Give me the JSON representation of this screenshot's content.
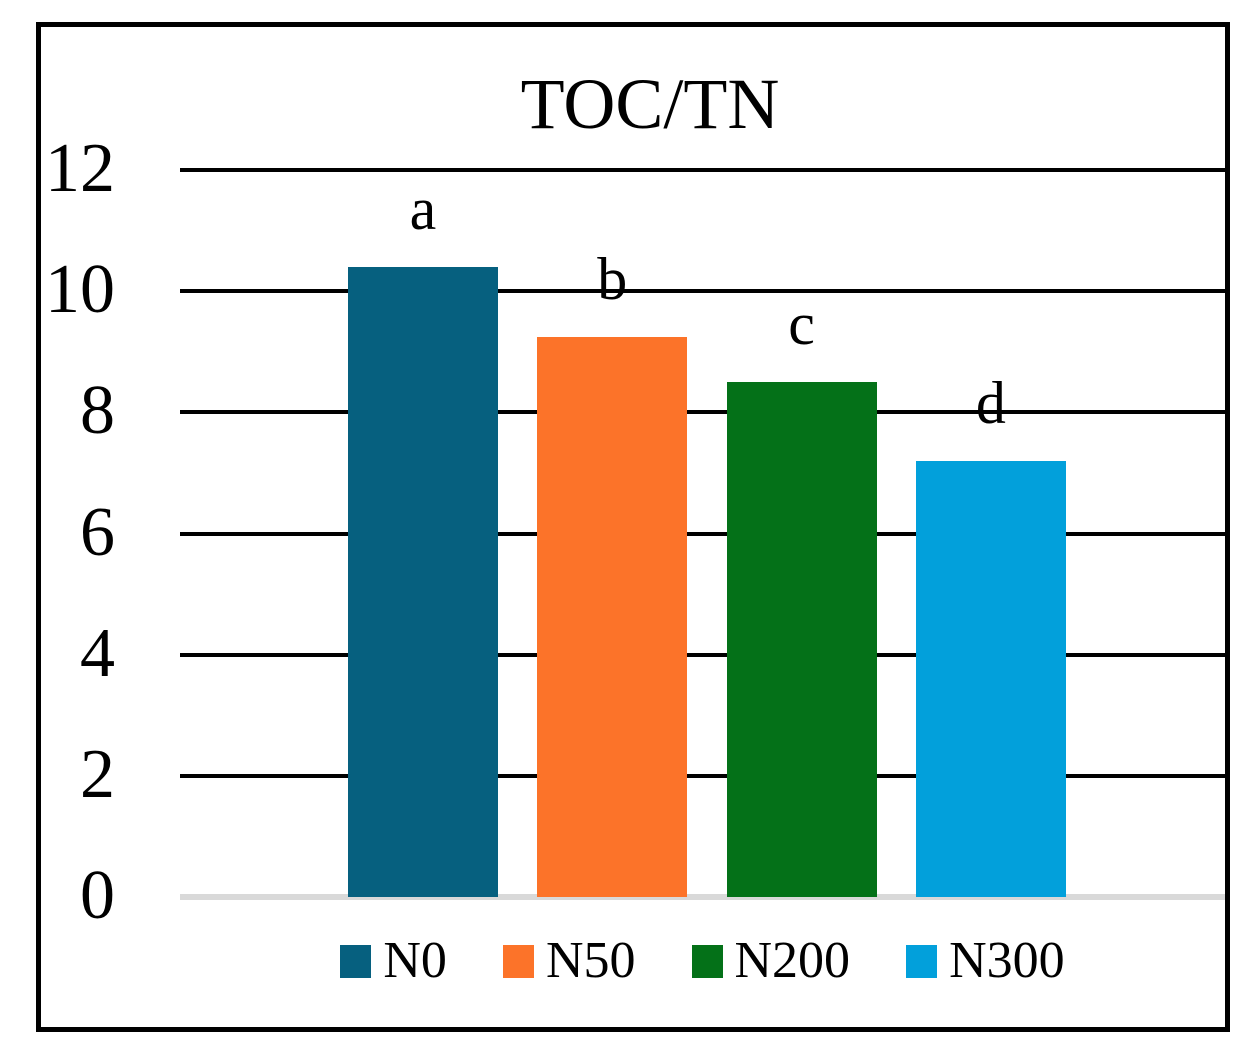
{
  "chart_data": {
    "type": "bar",
    "title": "TOC/TN",
    "categories": [
      "N0",
      "N50",
      "N200",
      "N300"
    ],
    "values": [
      10.4,
      9.25,
      8.5,
      7.2
    ],
    "significance_letters": [
      "a",
      "b",
      "c",
      "d"
    ],
    "bar_colors": [
      "#06607F",
      "#FC7329",
      "#047118",
      "#02A0DB"
    ],
    "ylim": [
      0,
      12
    ],
    "yticks": [
      0,
      2,
      4,
      6,
      8,
      10,
      12
    ],
    "xlabel": "",
    "ylabel": "",
    "grid": "horizontal",
    "gridline_color": "#000000",
    "baseline_color": "#D9D9D9",
    "frame_color": "#000000",
    "legend_position": "bottom",
    "legend_entries": [
      "N0",
      "N50",
      "N200",
      "N300"
    ]
  }
}
